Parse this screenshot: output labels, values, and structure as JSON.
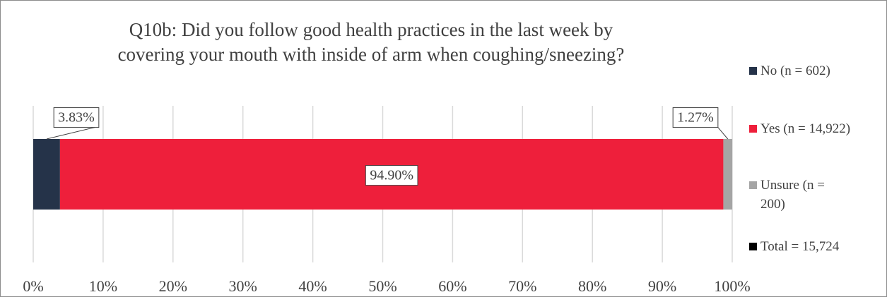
{
  "chart_data": {
    "type": "bar",
    "orientation": "horizontal",
    "stacked": true,
    "title": "Q10b: Did you follow good health practices in the last week by covering your mouth with inside of arm when coughing/sneezing?",
    "categories": [
      null
    ],
    "series": [
      {
        "name": "No (n = 602)",
        "color": "#253349",
        "values": [
          3.83
        ],
        "value_labels": [
          "3.83%"
        ]
      },
      {
        "name": "Yes (n = 14,922)",
        "color": "#ee1f3b",
        "values": [
          94.9
        ],
        "value_labels": [
          "94.90%"
        ]
      },
      {
        "name": "Unsure (n = 200)",
        "color": "#a5a5a5",
        "values": [
          1.27
        ],
        "value_labels": [
          "1.27%"
        ]
      },
      {
        "name": "Total = 15,724",
        "color": "#000000",
        "values": [
          null
        ]
      }
    ],
    "xlim": [
      0,
      100
    ],
    "xticks": [
      {
        "value": 0,
        "label": "0%"
      },
      {
        "value": 10,
        "label": "10%"
      },
      {
        "value": 20,
        "label": "20%"
      },
      {
        "value": 30,
        "label": "30%"
      },
      {
        "value": 40,
        "label": "40%"
      },
      {
        "value": 50,
        "label": "50%"
      },
      {
        "value": 60,
        "label": "60%"
      },
      {
        "value": 70,
        "label": "70%"
      },
      {
        "value": 80,
        "label": "80%"
      },
      {
        "value": 90,
        "label": "90%"
      },
      {
        "value": 100,
        "label": "100%"
      }
    ],
    "grid": true,
    "legend": "right"
  }
}
